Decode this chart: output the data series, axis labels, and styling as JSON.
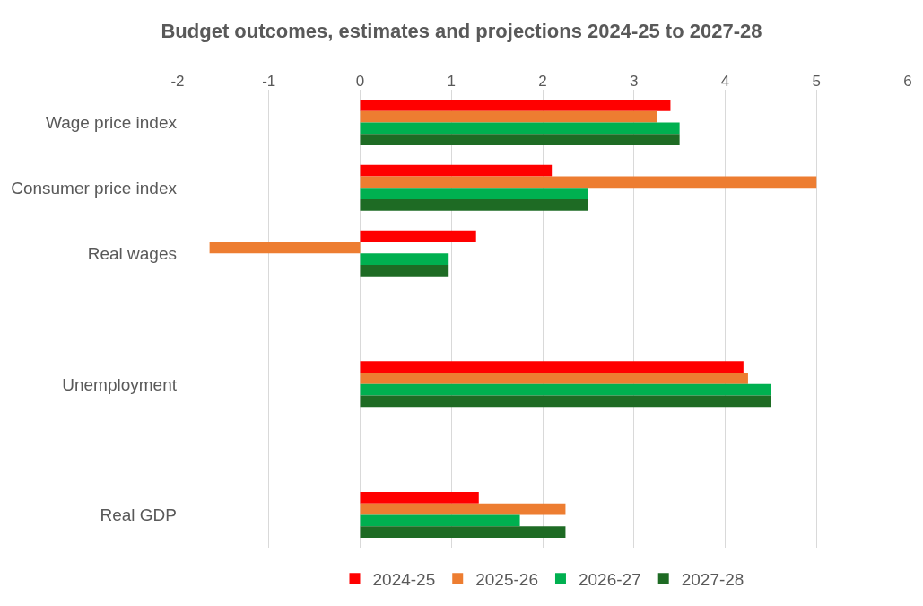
{
  "chart_data": {
    "type": "bar",
    "orientation": "horizontal",
    "title": "Budget outcomes, estimates and projections 2024-25 to 2027-28",
    "categories": [
      "Wage price index",
      "Consumer price index",
      "Real wages",
      null,
      "Unemployment",
      null,
      "Real GDP"
    ],
    "series": [
      {
        "name": "2024-25",
        "color": "#ff0000",
        "values": [
          3.4,
          2.1,
          1.27,
          null,
          4.2,
          null,
          1.3
        ]
      },
      {
        "name": "2025-26",
        "color": "#ed7d31",
        "values": [
          3.25,
          5.0,
          -1.65,
          null,
          4.25,
          null,
          2.25
        ]
      },
      {
        "name": "2026-27",
        "color": "#00b050",
        "values": [
          3.5,
          2.5,
          0.97,
          null,
          4.5,
          null,
          1.75
        ]
      },
      {
        "name": "2027-28",
        "color": "#1e6b24",
        "values": [
          3.5,
          2.5,
          0.97,
          null,
          4.5,
          null,
          2.25
        ]
      }
    ],
    "xlim": [
      -2,
      6
    ],
    "xticks": [
      -2,
      -1,
      0,
      1,
      2,
      3,
      4,
      5,
      6
    ],
    "grid": "x",
    "legend": "bottom"
  }
}
